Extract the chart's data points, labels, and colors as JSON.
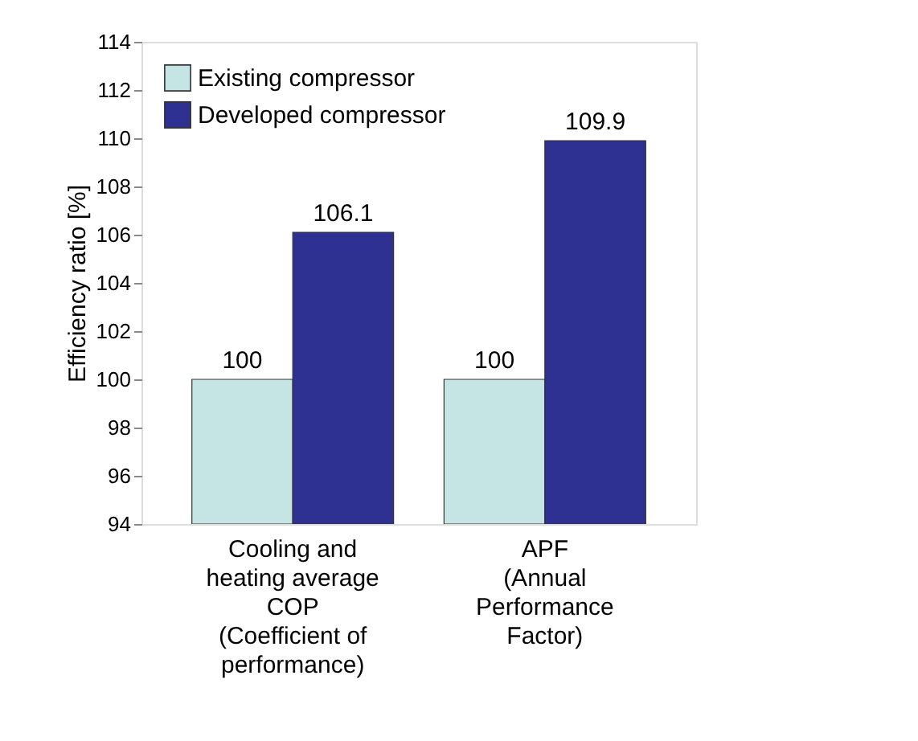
{
  "chart_data": {
    "type": "bar",
    "ylabel": "Efficiency ratio [%]",
    "categories": [
      "Cooling and\nheating average\nCOP\n(Coefficient of\nperformance)",
      "APF\n(Annual\nPerformance\nFactor)"
    ],
    "series": [
      {
        "name": "Existing compressor",
        "color": "#c4e5e3",
        "values": [
          100,
          100
        ]
      },
      {
        "name": "Developed compressor",
        "color": "#2e3191",
        "values": [
          106.1,
          109.9
        ]
      }
    ],
    "ylim": [
      94,
      114
    ],
    "yticks": [
      94,
      96,
      98,
      100,
      102,
      104,
      106,
      108,
      110,
      112,
      114
    ],
    "data_labels": true,
    "grid": false,
    "legend": "top left"
  }
}
